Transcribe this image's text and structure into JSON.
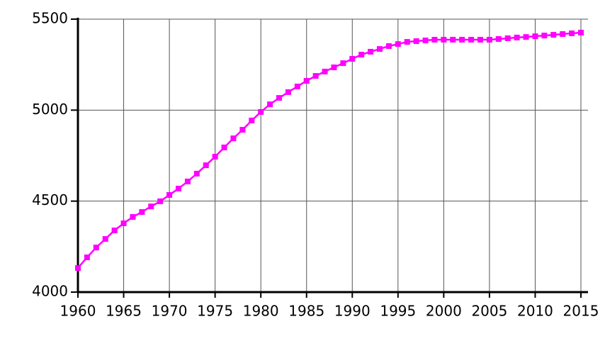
{
  "chart_data": {
    "type": "line",
    "x": [
      1960,
      1961,
      1962,
      1963,
      1964,
      1965,
      1966,
      1967,
      1968,
      1969,
      1970,
      1971,
      1972,
      1973,
      1974,
      1975,
      1976,
      1977,
      1978,
      1979,
      1980,
      1981,
      1982,
      1983,
      1984,
      1985,
      1986,
      1987,
      1988,
      1989,
      1990,
      1991,
      1992,
      1993,
      1994,
      1995,
      1996,
      1997,
      1998,
      1999,
      2000,
      2001,
      2002,
      2003,
      2004,
      2005,
      2006,
      2007,
      2008,
      2009,
      2010,
      2011,
      2012,
      2013,
      2014,
      2015
    ],
    "series": [
      {
        "color": "#ff00ff",
        "values": [
          4132,
          4191,
          4245,
          4292,
          4339,
          4378,
          4413,
          4440,
          4471,
          4499,
          4534,
          4569,
          4608,
          4651,
          4697,
          4744,
          4795,
          4845,
          4892,
          4943,
          4990,
          5032,
          5067,
          5099,
          5130,
          5161,
          5188,
          5212,
          5235,
          5258,
          5282,
          5305,
          5321,
          5336,
          5352,
          5363,
          5375,
          5379,
          5383,
          5387,
          5387,
          5387,
          5387,
          5387,
          5387,
          5387,
          5391,
          5395,
          5399,
          5402,
          5406,
          5410,
          5414,
          5418,
          5422,
          5426
        ]
      }
    ],
    "xlim": [
      1960,
      2015
    ],
    "xticks": [
      1960,
      1965,
      1970,
      1975,
      1980,
      1985,
      1990,
      1995,
      2000,
      2005,
      2010,
      2015
    ],
    "ylim": [
      4000,
      5500
    ],
    "yticks": [
      4000,
      4500,
      5000,
      5500
    ],
    "grid": true
  }
}
